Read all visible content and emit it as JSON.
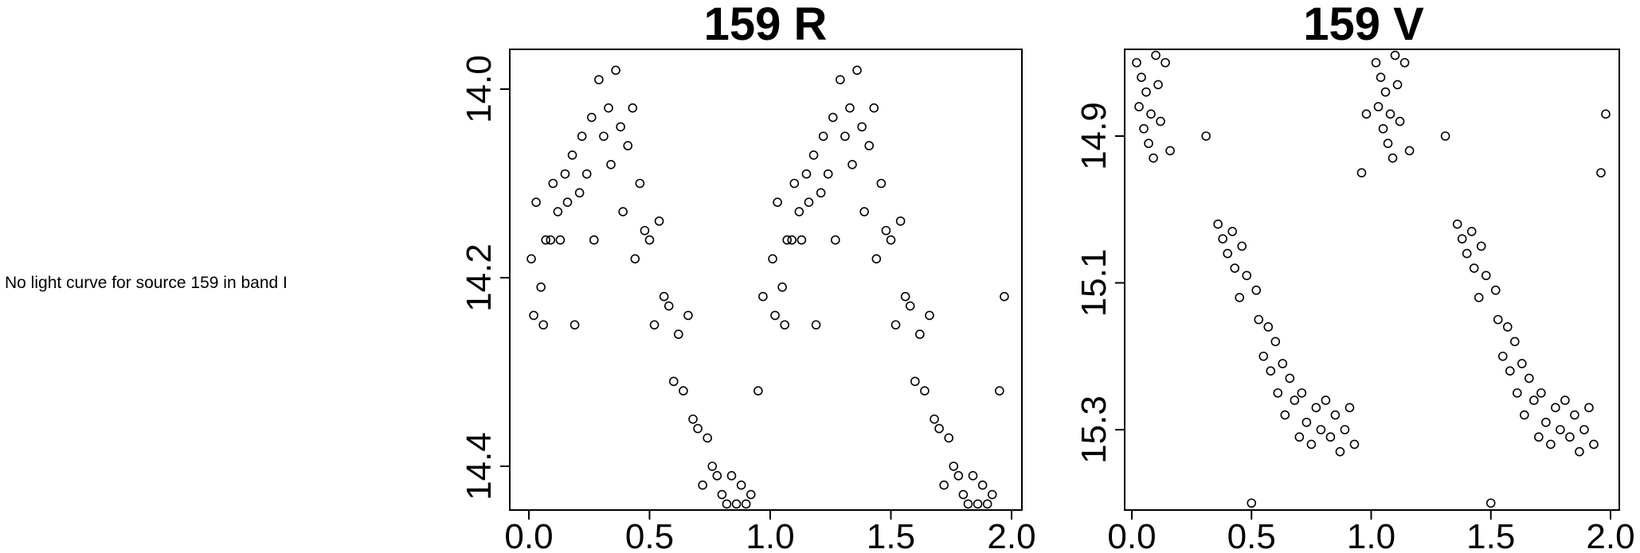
{
  "message": "No light curve for source 159 in band I",
  "colors": {
    "foreground": "#000000",
    "background": "#ffffff"
  },
  "chart_data": [
    {
      "type": "scatter",
      "band": "R",
      "title": "159 R",
      "xlabel": "",
      "ylabel": "",
      "marker": "open-circle",
      "point_color": "#000000",
      "grid": false,
      "legend": "none",
      "x_is_phase_folded": true,
      "note": "each point is plotted twice, at phase and phase+1",
      "xlim": [
        -0.08,
        2.04
      ],
      "ylim": [
        14.45,
        13.96
      ],
      "y_axis_inverted_magnitude": true,
      "xticks": [
        0.0,
        0.5,
        1.0,
        1.5,
        2.0
      ],
      "xtick_labels": [
        "0.0",
        "0.5",
        "1.0",
        "1.5",
        "2.0"
      ],
      "yticks": [
        14.0,
        14.2,
        14.4
      ],
      "ytick_labels": [
        "14.0",
        "14.2",
        "14.4"
      ],
      "points": [
        [
          0.01,
          14.18
        ],
        [
          0.02,
          14.24
        ],
        [
          0.03,
          14.12
        ],
        [
          0.05,
          14.21
        ],
        [
          0.06,
          14.25
        ],
        [
          0.07,
          14.16
        ],
        [
          0.09,
          14.16
        ],
        [
          0.1,
          14.1
        ],
        [
          0.12,
          14.13
        ],
        [
          0.13,
          14.16
        ],
        [
          0.15,
          14.09
        ],
        [
          0.16,
          14.12
        ],
        [
          0.18,
          14.07
        ],
        [
          0.19,
          14.25
        ],
        [
          0.21,
          14.11
        ],
        [
          0.22,
          14.05
        ],
        [
          0.24,
          14.09
        ],
        [
          0.26,
          14.03
        ],
        [
          0.27,
          14.16
        ],
        [
          0.29,
          13.99
        ],
        [
          0.31,
          14.05
        ],
        [
          0.33,
          14.02
        ],
        [
          0.34,
          14.08
        ],
        [
          0.36,
          13.98
        ],
        [
          0.38,
          14.04
        ],
        [
          0.39,
          14.13
        ],
        [
          0.41,
          14.06
        ],
        [
          0.43,
          14.02
        ],
        [
          0.44,
          14.18
        ],
        [
          0.46,
          14.1
        ],
        [
          0.48,
          14.15
        ],
        [
          0.5,
          14.16
        ],
        [
          0.52,
          14.25
        ],
        [
          0.54,
          14.14
        ],
        [
          0.56,
          14.22
        ],
        [
          0.58,
          14.23
        ],
        [
          0.6,
          14.31
        ],
        [
          0.62,
          14.26
        ],
        [
          0.64,
          14.32
        ],
        [
          0.66,
          14.24
        ],
        [
          0.68,
          14.35
        ],
        [
          0.7,
          14.36
        ],
        [
          0.72,
          14.42
        ],
        [
          0.74,
          14.37
        ],
        [
          0.76,
          14.4
        ],
        [
          0.78,
          14.41
        ],
        [
          0.8,
          14.43
        ],
        [
          0.82,
          14.44
        ],
        [
          0.84,
          14.41
        ],
        [
          0.86,
          14.44
        ],
        [
          0.88,
          14.42
        ],
        [
          0.9,
          14.44
        ],
        [
          0.92,
          14.43
        ],
        [
          0.95,
          14.32
        ],
        [
          0.97,
          14.22
        ]
      ]
    },
    {
      "type": "scatter",
      "band": "V",
      "title": "159 V",
      "xlabel": "",
      "ylabel": "",
      "marker": "open-circle",
      "point_color": "#000000",
      "grid": false,
      "legend": "none",
      "x_is_phase_folded": true,
      "note": "each point is plotted twice, at phase and phase+1",
      "xlim": [
        -0.08,
        2.04
      ],
      "ylim": [
        15.41,
        14.78
      ],
      "y_axis_inverted_magnitude": true,
      "xticks": [
        0.0,
        0.5,
        1.0,
        1.5,
        2.0
      ],
      "xtick_labels": [
        "0.0",
        "0.5",
        "1.0",
        "1.5",
        "2.0"
      ],
      "yticks": [
        14.9,
        15.1,
        15.3
      ],
      "ytick_labels": [
        "14.9",
        "15.1",
        "15.3"
      ],
      "points": [
        [
          0.02,
          14.8
        ],
        [
          0.03,
          14.86
        ],
        [
          0.04,
          14.82
        ],
        [
          0.05,
          14.89
        ],
        [
          0.06,
          14.84
        ],
        [
          0.07,
          14.91
        ],
        [
          0.08,
          14.87
        ],
        [
          0.09,
          14.93
        ],
        [
          0.1,
          14.79
        ],
        [
          0.11,
          14.83
        ],
        [
          0.12,
          14.88
        ],
        [
          0.14,
          14.8
        ],
        [
          0.16,
          14.92
        ],
        [
          0.31,
          14.9
        ],
        [
          0.36,
          15.02
        ],
        [
          0.38,
          15.04
        ],
        [
          0.4,
          15.06
        ],
        [
          0.42,
          15.03
        ],
        [
          0.43,
          15.08
        ],
        [
          0.45,
          15.12
        ],
        [
          0.46,
          15.05
        ],
        [
          0.48,
          15.09
        ],
        [
          0.5,
          15.4
        ],
        [
          0.52,
          15.11
        ],
        [
          0.53,
          15.15
        ],
        [
          0.55,
          15.2
        ],
        [
          0.57,
          15.16
        ],
        [
          0.58,
          15.22
        ],
        [
          0.6,
          15.18
        ],
        [
          0.61,
          15.25
        ],
        [
          0.63,
          15.21
        ],
        [
          0.64,
          15.28
        ],
        [
          0.66,
          15.23
        ],
        [
          0.68,
          15.26
        ],
        [
          0.7,
          15.31
        ],
        [
          0.71,
          15.25
        ],
        [
          0.73,
          15.29
        ],
        [
          0.75,
          15.32
        ],
        [
          0.77,
          15.27
        ],
        [
          0.79,
          15.3
        ],
        [
          0.81,
          15.26
        ],
        [
          0.83,
          15.31
        ],
        [
          0.85,
          15.28
        ],
        [
          0.87,
          15.33
        ],
        [
          0.89,
          15.3
        ],
        [
          0.91,
          15.27
        ],
        [
          0.93,
          15.32
        ],
        [
          0.96,
          14.95
        ],
        [
          0.98,
          14.87
        ]
      ]
    }
  ]
}
